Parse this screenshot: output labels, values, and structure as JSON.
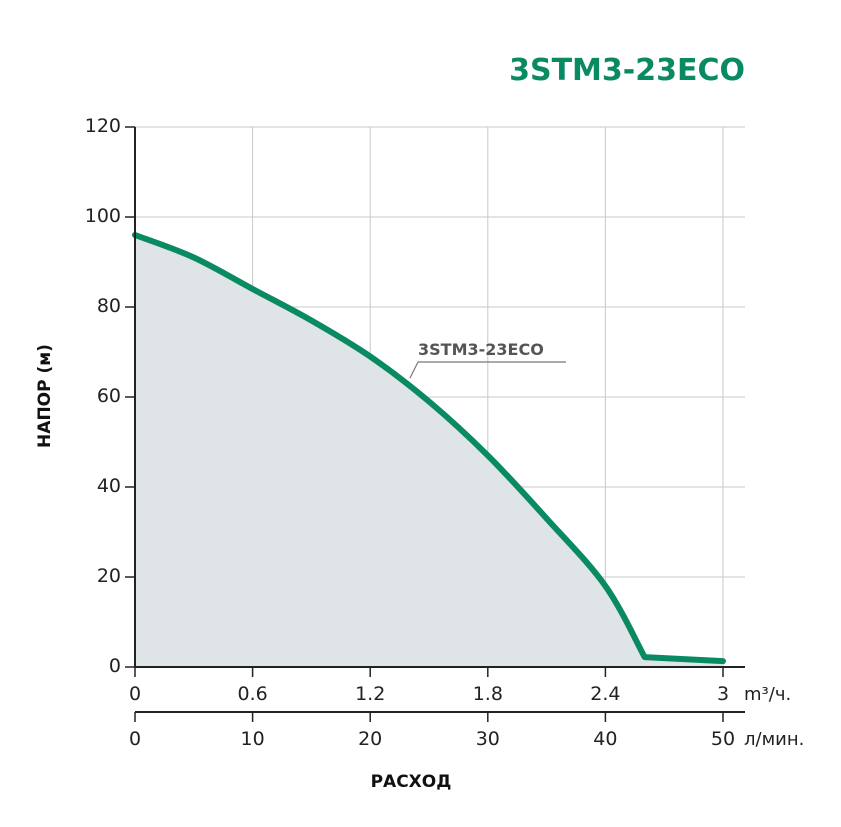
{
  "chart_data": {
    "type": "area",
    "title": "3STM3-23ECO",
    "ylabel": "НАПОР (м)",
    "xlabel": "РАСХОД",
    "ylim": [
      0,
      120
    ],
    "yticks": [
      "0",
      "20",
      "40",
      "60",
      "80",
      "100",
      "120"
    ],
    "x_axis_primary": {
      "unit": "m³/ч.",
      "range": [
        0,
        3
      ],
      "ticks": [
        "0",
        "0.6",
        "1.2",
        "1.8",
        "2.4",
        "3"
      ]
    },
    "x_axis_secondary": {
      "unit": "л/мин.",
      "range": [
        0,
        50
      ],
      "ticks": [
        "0",
        "10",
        "20",
        "30",
        "40",
        "50"
      ]
    },
    "grid": true,
    "series": [
      {
        "name": "3STM3-23ECO",
        "x": [
          0,
          0.3,
          0.6,
          0.9,
          1.2,
          1.5,
          1.8,
          2.1,
          2.4,
          2.6,
          3.0
        ],
        "y": [
          96,
          91,
          84,
          77,
          69,
          59,
          47,
          33,
          18,
          2.2,
          1.3
        ]
      }
    ],
    "colors": {
      "line": "#0a8a63",
      "fill": "#dfe4e6",
      "title": "#0a8a63",
      "grid": "#c9c9c9"
    }
  }
}
